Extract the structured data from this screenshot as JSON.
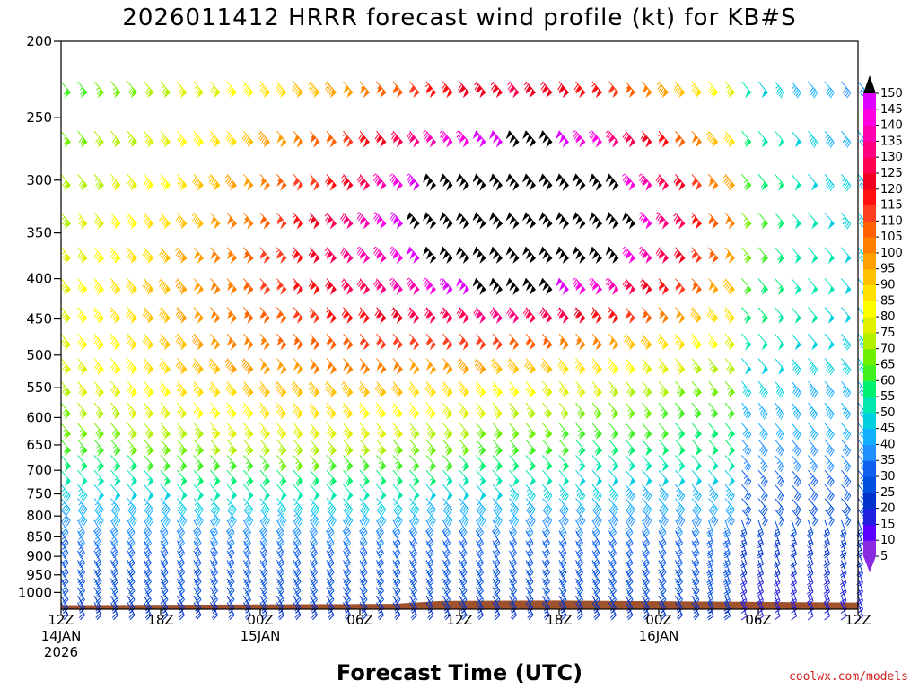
{
  "chart_data": {
    "type": "wind-barb-profile",
    "title": "2026011412 HRRR forecast wind profile (kt) for KB#S",
    "xlabel": "Forecast Time (UTC)",
    "ylabel": "",
    "credit": "coolwx.com/models",
    "y_ticks": [
      200,
      250,
      300,
      350,
      400,
      450,
      500,
      550,
      600,
      650,
      700,
      750,
      800,
      850,
      900,
      950,
      1000
    ],
    "x_ticks": [
      {
        "hours": 0,
        "label": "12Z",
        "sub1": "14JAN",
        "sub2": "2026"
      },
      {
        "hours": 6,
        "label": "18Z",
        "sub1": "",
        "sub2": ""
      },
      {
        "hours": 12,
        "label": "00Z",
        "sub1": "15JAN",
        "sub2": ""
      },
      {
        "hours": 18,
        "label": "06Z",
        "sub1": "",
        "sub2": ""
      },
      {
        "hours": 24,
        "label": "12Z",
        "sub1": "",
        "sub2": ""
      },
      {
        "hours": 30,
        "label": "18Z",
        "sub1": "",
        "sub2": ""
      },
      {
        "hours": 36,
        "label": "00Z",
        "sub1": "16JAN",
        "sub2": ""
      },
      {
        "hours": 42,
        "label": "06Z",
        "sub1": "",
        "sub2": ""
      },
      {
        "hours": 48,
        "label": "12Z",
        "sub1": "",
        "sub2": ""
      }
    ],
    "x_range_hours": [
      0,
      48
    ],
    "y_range_hPa": [
      200,
      1050
    ],
    "y_scale": "log-pressure",
    "barb_levels_hPa": [
      225,
      260,
      295,
      330,
      365,
      400,
      435,
      470,
      505,
      540,
      575,
      610,
      640,
      670,
      700,
      730,
      760,
      785,
      810,
      835,
      860,
      885,
      910,
      935,
      960,
      985,
      1010,
      1030
    ],
    "colorbar": {
      "levels": [
        5,
        10,
        15,
        20,
        25,
        30,
        35,
        40,
        45,
        50,
        55,
        60,
        65,
        70,
        75,
        80,
        85,
        90,
        95,
        100,
        105,
        110,
        115,
        120,
        125,
        130,
        135,
        140,
        145,
        150
      ],
      "colors": [
        "#8a2be2",
        "#5a00ff",
        "#2020e0",
        "#0033cc",
        "#0050e0",
        "#1060f0",
        "#2090ff",
        "#10b0ff",
        "#00d0e0",
        "#00e8b0",
        "#00f070",
        "#40f020",
        "#70f000",
        "#b0f000",
        "#e0f000",
        "#ffff00",
        "#ffe000",
        "#ffc000",
        "#ffa000",
        "#ff8000",
        "#ff6000",
        "#ff4020",
        "#ff1010",
        "#f00020",
        "#ff0050",
        "#ff0080",
        "#ff00b0",
        "#ff00e0",
        "#e000ff",
        "#000000"
      ]
    },
    "terrain_color": "#a0522d",
    "terrain_pressure_hPa": [
      {
        "hours": 0,
        "hPa": 1038
      },
      {
        "hours": 10,
        "hPa": 1036
      },
      {
        "hours": 20,
        "hPa": 1034
      },
      {
        "hours": 23,
        "hPa": 1025
      },
      {
        "hours": 30,
        "hPa": 1024
      },
      {
        "hours": 36,
        "hPa": 1026
      },
      {
        "hours": 42,
        "hPa": 1028
      },
      {
        "hours": 48,
        "hPa": 1030
      }
    ]
  }
}
